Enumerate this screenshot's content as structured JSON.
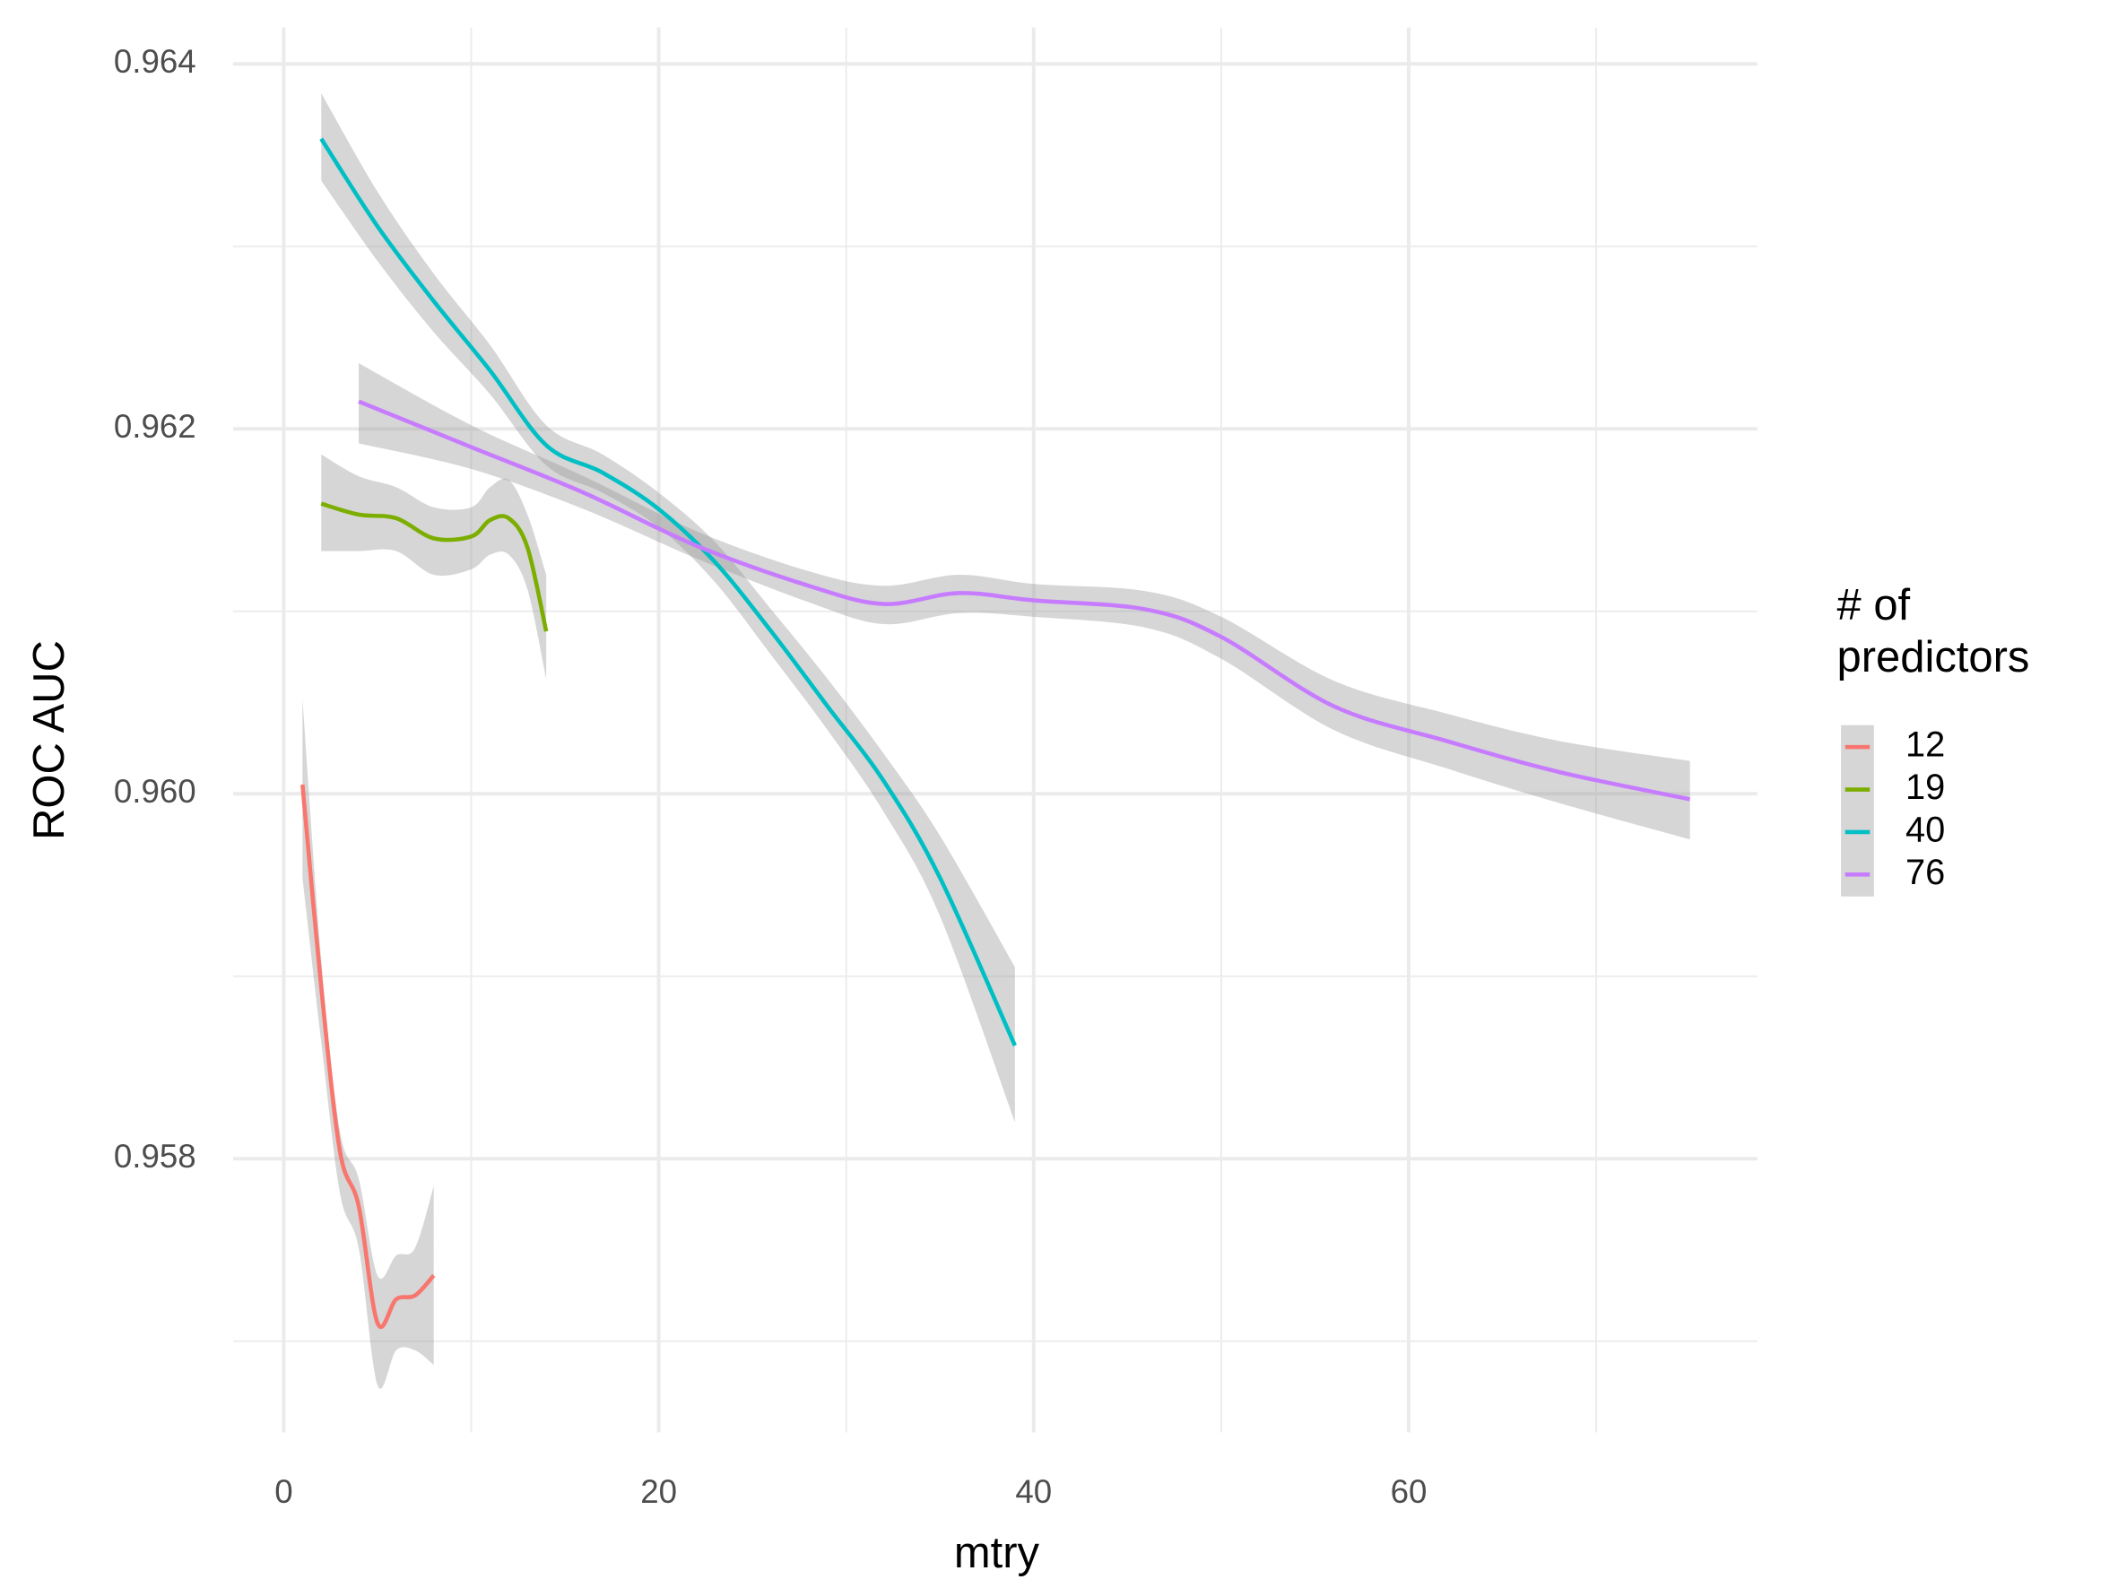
{
  "chart_data": {
    "type": "line",
    "x_label": "mtry",
    "y_label": "ROC AUC",
    "legend_title": "# of predictors",
    "legend_position": "right",
    "grid": true,
    "xlim": [
      -2.7,
      78.6
    ],
    "ylim": [
      0.9565,
      0.9642
    ],
    "xticks": [
      0,
      20,
      40,
      60
    ],
    "yticks": [
      0.958,
      {
        "value": 0.96,
        "label": "0.960"
      },
      0.962,
      0.964
    ],
    "series": [
      {
        "name": "12",
        "color": "#F8766D",
        "x": [
          1,
          2,
          3,
          4,
          5,
          6,
          7,
          8
        ],
        "values": [
          0.96005,
          0.95894,
          0.95804,
          0.95774,
          0.9571,
          0.95723,
          0.95725,
          0.95736
        ],
        "upper": [
          0.96052,
          0.95909,
          0.95815,
          0.95789,
          0.95736,
          0.95747,
          0.95751,
          0.95785
        ],
        "lower": [
          0.95954,
          0.95864,
          0.95781,
          0.95751,
          0.95676,
          0.95695,
          0.95695,
          0.95687
        ]
      },
      {
        "name": "19",
        "color": "#7CAE00",
        "x": [
          2,
          4,
          6,
          8,
          10,
          11,
          12,
          13,
          14
        ],
        "values": [
          0.96159,
          0.96153,
          0.96151,
          0.9614,
          0.96141,
          0.9615,
          0.96151,
          0.96135,
          0.96089
        ],
        "upper": [
          0.96186,
          0.96174,
          0.96168,
          0.96157,
          0.96157,
          0.96168,
          0.96172,
          0.96153,
          0.9612
        ],
        "lower": [
          0.96133,
          0.96133,
          0.96133,
          0.9612,
          0.96123,
          0.96131,
          0.96131,
          0.96112,
          0.96063
        ]
      },
      {
        "name": "40",
        "color": "#00BFC4",
        "x": [
          2,
          5,
          8,
          11,
          14,
          17,
          20,
          23,
          26,
          29,
          32,
          35,
          39
        ],
        "values": [
          0.96359,
          0.96311,
          0.9627,
          0.96232,
          0.96191,
          0.96176,
          0.96156,
          0.96127,
          0.96089,
          0.96048,
          0.96007,
          0.95954,
          0.95862
        ],
        "upper": [
          0.96384,
          0.9633,
          0.96285,
          0.96246,
          0.96202,
          0.96186,
          0.96165,
          0.96138,
          0.96101,
          0.96063,
          0.96022,
          0.95977,
          0.95905
        ],
        "lower": [
          0.96336,
          0.96292,
          0.96253,
          0.96219,
          0.9618,
          0.96165,
          0.96146,
          0.96116,
          0.96076,
          0.96035,
          0.9599,
          0.95933,
          0.9582
        ]
      },
      {
        "name": "76",
        "color": "#C77CFF",
        "x": [
          4,
          10,
          16,
          22,
          28,
          32,
          36,
          40,
          46,
          50,
          56,
          62,
          68,
          75
        ],
        "values": [
          0.96215,
          0.9619,
          0.96165,
          0.96136,
          0.96114,
          0.96104,
          0.9611,
          0.96106,
          0.96101,
          0.96086,
          0.96048,
          0.96029,
          0.96012,
          0.95997
        ],
        "upper": [
          0.96236,
          0.96202,
          0.96174,
          0.96144,
          0.96122,
          0.96114,
          0.9612,
          0.96115,
          0.96111,
          0.96097,
          0.96062,
          0.96044,
          0.96029,
          0.96018
        ],
        "lower": [
          0.96192,
          0.96178,
          0.96156,
          0.96129,
          0.96105,
          0.96093,
          0.96099,
          0.96097,
          0.96091,
          0.96074,
          0.96035,
          0.96014,
          0.95995,
          0.95975
        ]
      }
    ]
  }
}
